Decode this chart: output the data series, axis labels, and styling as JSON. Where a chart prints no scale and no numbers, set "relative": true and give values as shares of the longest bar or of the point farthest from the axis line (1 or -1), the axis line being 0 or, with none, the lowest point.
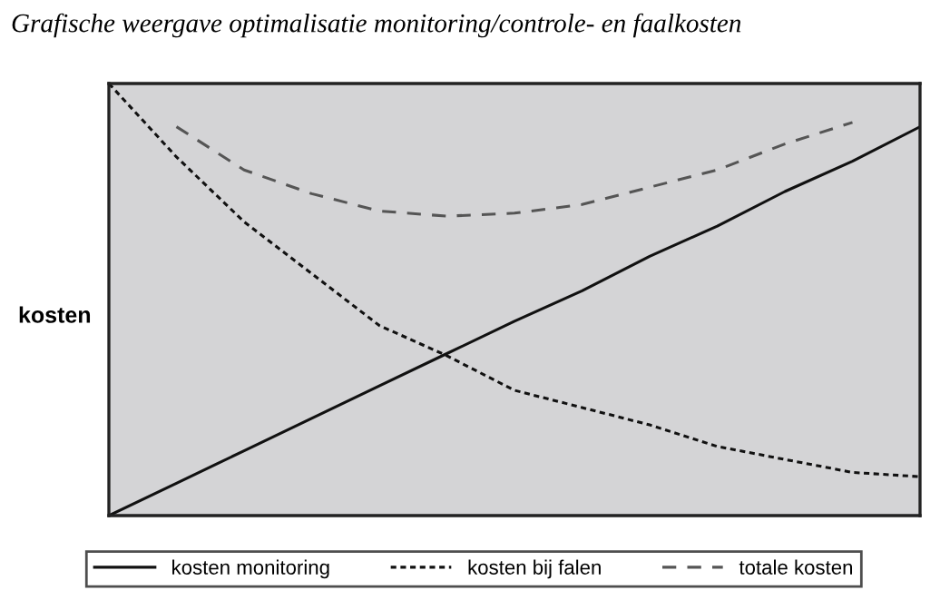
{
  "chart_data": {
    "type": "line",
    "title": "Grafische weergave optimalisatie monitoring/controle- en faalkosten",
    "ylabel": "kosten",
    "relative": true,
    "legend": "bottom",
    "marker": "none",
    "categories": [
      null,
      null,
      null,
      null,
      null,
      null,
      null,
      null,
      null,
      null,
      null,
      null,
      null
    ],
    "series": [
      {
        "name": "kosten monitoring",
        "color": "#111111",
        "line_style": "solid",
        "values": [
          0,
          0.075,
          0.15,
          0.225,
          0.3,
          0.375,
          0.45,
          0.52,
          0.6,
          0.67,
          0.75,
          0.82,
          0.9
        ]
      },
      {
        "name": "kosten bij falen",
        "color": "#111111",
        "line_style": "dotted",
        "values": [
          1.0,
          0.83,
          0.68,
          0.56,
          0.44,
          0.37,
          0.29,
          0.25,
          0.21,
          0.16,
          0.13,
          0.1,
          0.09
        ]
      },
      {
        "name": "totale kosten",
        "color": "#555555",
        "line_style": "dashed",
        "values": [
          null,
          0.9,
          0.8,
          0.745,
          0.705,
          0.693,
          0.7,
          0.72,
          0.76,
          0.8,
          0.86,
          0.91,
          null
        ]
      }
    ]
  }
}
